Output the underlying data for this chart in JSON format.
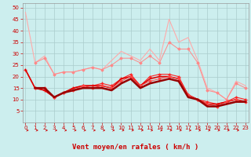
{
  "title": "",
  "xlabel": "Vent moyen/en rafales ( km/h )",
  "ylabel": "",
  "background_color": "#cceeee",
  "grid_color": "#aacccc",
  "x": [
    0,
    1,
    2,
    3,
    4,
    5,
    6,
    7,
    8,
    9,
    10,
    11,
    12,
    13,
    14,
    15,
    16,
    17,
    18,
    19,
    20,
    21,
    22,
    23
  ],
  "series": [
    {
      "color": "#ffaaaa",
      "values": [
        48,
        26,
        29,
        21,
        22,
        22,
        23,
        24,
        23,
        27,
        31,
        29,
        27,
        32,
        27,
        45,
        35,
        37,
        27,
        15,
        13,
        10,
        18,
        16
      ],
      "marker": null,
      "linewidth": 0.8
    },
    {
      "color": "#ff8888",
      "values": [
        null,
        26,
        28,
        21,
        22,
        22,
        23,
        24,
        23,
        25,
        28,
        28,
        26,
        29,
        26,
        35,
        32,
        32,
        26,
        14,
        13,
        10,
        17,
        15
      ],
      "marker": "D",
      "markersize": 1.5,
      "linewidth": 0.7
    },
    {
      "color": "#ff2222",
      "values": [
        23,
        15,
        14,
        11,
        13,
        15,
        16,
        16,
        17,
        16,
        19,
        21,
        16,
        20,
        21,
        21,
        20,
        12,
        10,
        9,
        8,
        9,
        11,
        10
      ],
      "marker": "+",
      "markersize": 3,
      "linewidth": 0.8
    },
    {
      "color": "#dd0000",
      "values": [
        23,
        15,
        14,
        11,
        13,
        15,
        16,
        16,
        16,
        15,
        19,
        20,
        16,
        19,
        20,
        20,
        19,
        12,
        10,
        8,
        8,
        9,
        10,
        9
      ],
      "marker": null,
      "linewidth": 1.2
    },
    {
      "color": "#ff4444",
      "values": [
        null,
        15,
        15,
        11,
        13,
        14,
        16,
        15,
        16,
        15,
        18,
        20,
        16,
        18,
        19,
        20,
        19,
        12,
        10,
        8,
        7,
        9,
        10,
        9
      ],
      "marker": "D",
      "markersize": 1.5,
      "linewidth": 0.7
    },
    {
      "color": "#990000",
      "values": [
        null,
        15,
        15,
        11,
        13,
        14,
        15,
        15,
        15,
        14,
        17,
        19,
        15,
        17,
        18,
        19,
        18,
        11,
        10,
        7,
        7,
        8,
        9,
        9
      ],
      "marker": null,
      "linewidth": 1.8
    }
  ],
  "ylim": [
    0,
    52
  ],
  "yticks": [
    5,
    10,
    15,
    20,
    25,
    30,
    35,
    40,
    45,
    50
  ],
  "xlim": [
    -0.3,
    23.3
  ],
  "arrow_color": "#cc0000",
  "tick_fontsize": 5,
  "label_fontsize": 6.5,
  "label_color": "#cc0000"
}
